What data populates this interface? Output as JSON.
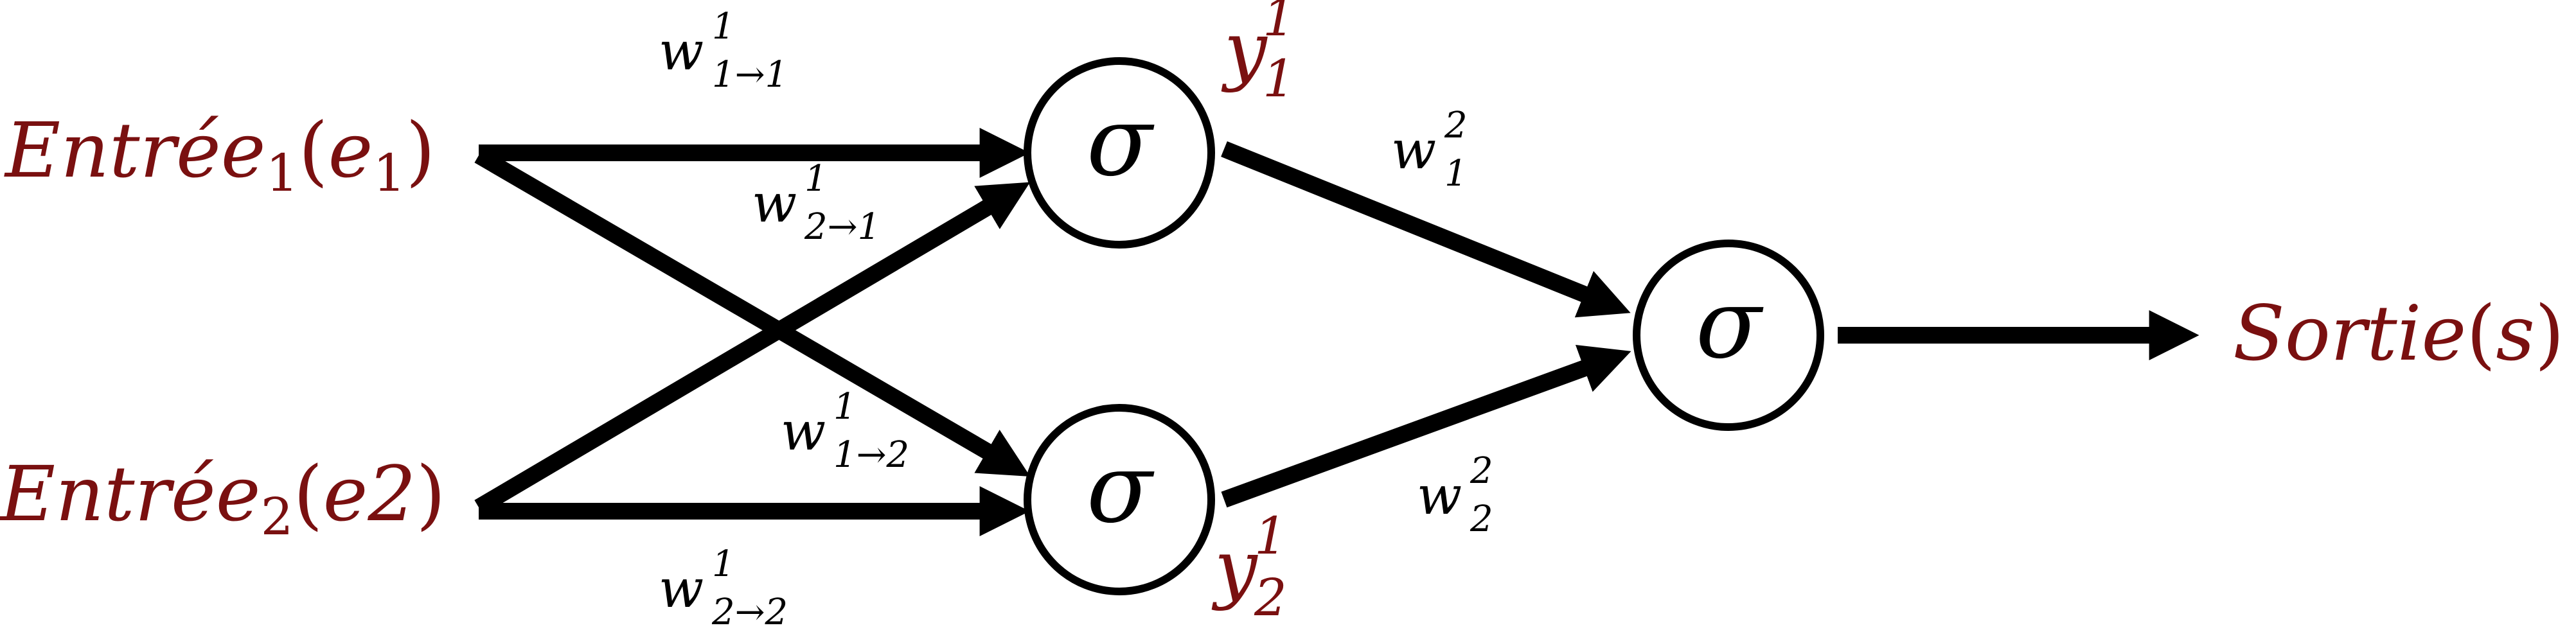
{
  "inputs": [
    {
      "name": "Entrée",
      "sub": "1",
      "arg": "e",
      "argsub": "1"
    },
    {
      "name": "Entrée",
      "sub": "2",
      "arg": "e2",
      "argsub": ""
    }
  ],
  "output": {
    "name": "Sortie",
    "arg": "s"
  },
  "activation_symbol": "σ",
  "hidden_outputs": [
    {
      "base": "y",
      "sup": "1",
      "sub": "1"
    },
    {
      "base": "y",
      "sup": "1",
      "sub": "2"
    }
  ],
  "weights": {
    "w11": {
      "base": "w",
      "sup": "1",
      "sub": "1→1"
    },
    "w21": {
      "base": "w",
      "sup": "1",
      "sub": "2→1"
    },
    "w12": {
      "base": "w",
      "sup": "1",
      "sub": "1→2"
    },
    "w22": {
      "base": "w",
      "sup": "1",
      "sub": "2→2"
    },
    "w1": {
      "base": "w",
      "sup": "2",
      "sub": "1"
    },
    "w2": {
      "base": "w",
      "sup": "2",
      "sub": "2"
    }
  },
  "colors": {
    "label": "#7a1010",
    "line": "#000000"
  }
}
